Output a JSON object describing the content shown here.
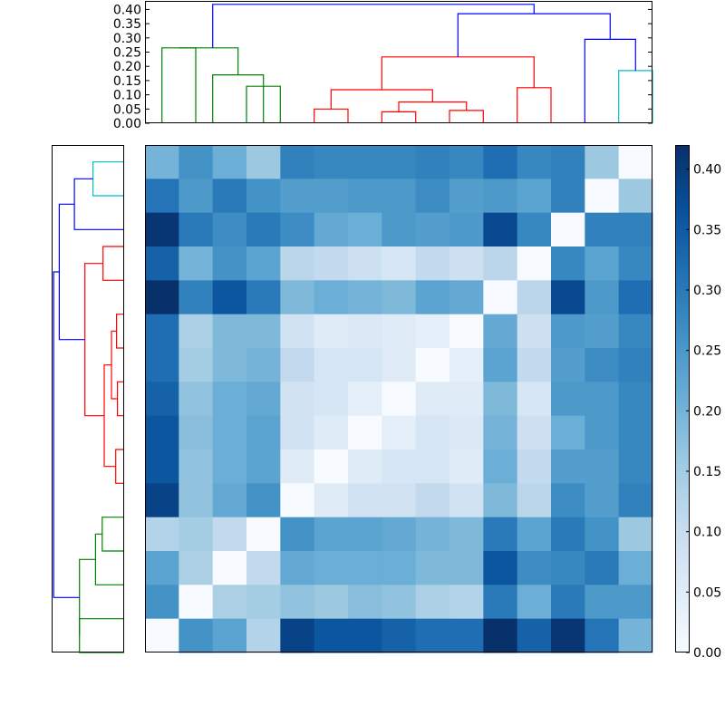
{
  "chart_data": [
    {
      "type": "dendrogram",
      "orientation": "top",
      "ylim": [
        0,
        0.43
      ],
      "yticks": [
        "0.00",
        "0.05",
        "0.10",
        "0.15",
        "0.20",
        "0.25",
        "0.30",
        "0.35",
        "0.40"
      ],
      "ytick_values": [
        0,
        0.05,
        0.1,
        0.15,
        0.2,
        0.25,
        0.3,
        0.35,
        0.4
      ],
      "leaf_count": 15,
      "links": [
        {
          "x": [
            0,
            0,
            1,
            1
          ],
          "y": [
            0,
            0.265,
            0.265,
            0
          ],
          "color": "#008000"
        },
        {
          "x": [
            1.5,
            1.5,
            3,
            3
          ],
          "y": [
            0,
            0.17,
            0.17,
            0
          ],
          "color": "#008000"
        },
        {
          "x": [
            2.5,
            2.5,
            3.5,
            3.5
          ],
          "y": [
            0,
            0.13,
            0.13,
            0
          ],
          "color": "#008000"
        },
        {
          "x": [
            0.5,
            0.5,
            2.25,
            2.25
          ],
          "y": [
            0.265,
            0.265,
            0.265,
            0.17
          ],
          "color": "#008000"
        },
        {
          "x": [
            4.5,
            4.5,
            5.5,
            5.5
          ],
          "y": [
            0,
            0.05,
            0.05,
            0
          ],
          "color": "#ff0000"
        },
        {
          "x": [
            6.5,
            6.5,
            7.5,
            7.5
          ],
          "y": [
            0,
            0.04,
            0.04,
            0
          ],
          "color": "#ff0000"
        },
        {
          "x": [
            8.5,
            8.5,
            9.5,
            9.5
          ],
          "y": [
            0,
            0.045,
            0.045,
            0
          ],
          "color": "#ff0000"
        },
        {
          "x": [
            7,
            7,
            9,
            9
          ],
          "y": [
            0.04,
            0.075,
            0.075,
            0.045
          ],
          "color": "#ff0000"
        },
        {
          "x": [
            5,
            5,
            8,
            8
          ],
          "y": [
            0.05,
            0.118,
            0.118,
            0.075
          ],
          "color": "#ff0000"
        },
        {
          "x": [
            10.5,
            10.5,
            11.5,
            11.5
          ],
          "y": [
            0,
            0.125,
            0.125,
            0
          ],
          "color": "#ff0000"
        },
        {
          "x": [
            6.5,
            6.5,
            11,
            11
          ],
          "y": [
            0.118,
            0.233,
            0.233,
            0.125
          ],
          "color": "#ff0000"
        },
        {
          "x": [
            13.5,
            13.5,
            14.5,
            14.5
          ],
          "y": [
            0,
            0.185,
            0.185,
            0
          ],
          "color": "#00bfbf"
        },
        {
          "x": [
            12.5,
            12.5,
            14,
            14
          ],
          "y": [
            0,
            0.295,
            0.295,
            0.185
          ],
          "color": "#0000ff"
        },
        {
          "x": [
            8.75,
            8.75,
            13.25,
            13.25
          ],
          "y": [
            0.233,
            0.385,
            0.385,
            0.295
          ],
          "color": "#0000ff"
        },
        {
          "x": [
            1.5,
            1.5,
            11,
            11
          ],
          "y": [
            0.265,
            0.418,
            0.418,
            0.385
          ],
          "color": "#0000ff"
        }
      ]
    },
    {
      "type": "dendrogram",
      "orientation": "left",
      "leaf_count": 15,
      "links": [
        {
          "x": [
            0,
            0,
            1,
            1
          ],
          "y": [
            0,
            0.185,
            0.185,
            0
          ],
          "color": "#00bfbf"
        },
        {
          "x": [
            0.5,
            0.5,
            2,
            2
          ],
          "y": [
            0.185,
            0.295,
            0.295,
            0
          ],
          "color": "#0000ff"
        },
        {
          "x": [
            2.5,
            2.5,
            3.5,
            3.5
          ],
          "y": [
            0,
            0.125,
            0.125,
            0
          ],
          "color": "#ff0000"
        },
        {
          "x": [
            4.5,
            4.5,
            5.5,
            5.5
          ],
          "y": [
            0,
            0.045,
            0.045,
            0
          ],
          "color": "#ff0000"
        },
        {
          "x": [
            6.5,
            6.5,
            7.5,
            7.5
          ],
          "y": [
            0,
            0.04,
            0.04,
            0
          ],
          "color": "#ff0000"
        },
        {
          "x": [
            5,
            5,
            7,
            7
          ],
          "y": [
            0.045,
            0.075,
            0.075,
            0.04
          ],
          "color": "#ff0000"
        },
        {
          "x": [
            8.5,
            8.5,
            9.5,
            9.5
          ],
          "y": [
            0,
            0.05,
            0.05,
            0
          ],
          "color": "#ff0000"
        },
        {
          "x": [
            6,
            6,
            9,
            9
          ],
          "y": [
            0.075,
            0.118,
            0.118,
            0.05
          ],
          "color": "#ff0000"
        },
        {
          "x": [
            3,
            3,
            7.5,
            7.5
          ],
          "y": [
            0.125,
            0.233,
            0.233,
            0.118
          ],
          "color": "#ff0000"
        },
        {
          "x": [
            1.25,
            1.25,
            5.25,
            5.25
          ],
          "y": [
            0.295,
            0.385,
            0.385,
            0.233
          ],
          "color": "#0000ff"
        },
        {
          "x": [
            10.5,
            10.5,
            11.5,
            11.5
          ],
          "y": [
            0,
            0.13,
            0.13,
            0
          ],
          "color": "#008000"
        },
        {
          "x": [
            11,
            11,
            12.5,
            12.5
          ],
          "y": [
            0.13,
            0.17,
            0.17,
            0
          ],
          "color": "#008000"
        },
        {
          "x": [
            13.5,
            13.5,
            14.5,
            14.5
          ],
          "y": [
            0,
            0.265,
            0.265,
            0
          ],
          "color": "#008000"
        },
        {
          "x": [
            11.75,
            11.75,
            14,
            14
          ],
          "y": [
            0.17,
            0.265,
            0.265,
            0.265
          ],
          "color": "#008000"
        },
        {
          "x": [
            3.25,
            3.25,
            12.875,
            12.875
          ],
          "y": [
            0.385,
            0.418,
            0.418,
            0.265
          ],
          "color": "#0000ff"
        }
      ]
    },
    {
      "type": "heatmap",
      "colormap": "Blues",
      "vmin": 0,
      "vmax": 0.42,
      "matrix": [
        [
          0.2,
          0.26,
          0.21,
          0.16,
          0.29,
          0.28,
          0.28,
          0.28,
          0.29,
          0.28,
          0.32,
          0.28,
          0.29,
          0.16,
          0.0
        ],
        [
          0.31,
          0.25,
          0.3,
          0.26,
          0.24,
          0.24,
          0.25,
          0.25,
          0.27,
          0.24,
          0.25,
          0.23,
          0.29,
          0.0,
          0.16
        ],
        [
          0.41,
          0.3,
          0.27,
          0.3,
          0.27,
          0.22,
          0.21,
          0.25,
          0.24,
          0.25,
          0.38,
          0.28,
          0.0,
          0.29,
          0.29
        ],
        [
          0.34,
          0.2,
          0.26,
          0.23,
          0.12,
          0.11,
          0.09,
          0.07,
          0.11,
          0.09,
          0.12,
          0.0,
          0.28,
          0.23,
          0.28
        ],
        [
          0.42,
          0.29,
          0.36,
          0.3,
          0.19,
          0.21,
          0.2,
          0.19,
          0.23,
          0.22,
          0.0,
          0.12,
          0.38,
          0.25,
          0.32
        ],
        [
          0.32,
          0.14,
          0.19,
          0.19,
          0.08,
          0.05,
          0.06,
          0.05,
          0.04,
          0.0,
          0.22,
          0.09,
          0.25,
          0.24,
          0.28
        ],
        [
          0.32,
          0.15,
          0.19,
          0.2,
          0.11,
          0.07,
          0.07,
          0.05,
          0.0,
          0.04,
          0.23,
          0.11,
          0.24,
          0.27,
          0.29
        ],
        [
          0.34,
          0.17,
          0.21,
          0.22,
          0.08,
          0.07,
          0.04,
          0.0,
          0.05,
          0.05,
          0.19,
          0.07,
          0.25,
          0.25,
          0.28
        ],
        [
          0.36,
          0.18,
          0.21,
          0.23,
          0.08,
          0.05,
          0.0,
          0.04,
          0.07,
          0.06,
          0.2,
          0.09,
          0.21,
          0.25,
          0.28
        ],
        [
          0.36,
          0.17,
          0.21,
          0.23,
          0.05,
          0.0,
          0.05,
          0.07,
          0.07,
          0.05,
          0.21,
          0.11,
          0.24,
          0.24,
          0.28
        ],
        [
          0.39,
          0.17,
          0.22,
          0.26,
          0.0,
          0.05,
          0.08,
          0.08,
          0.11,
          0.08,
          0.19,
          0.12,
          0.27,
          0.24,
          0.29
        ],
        [
          0.13,
          0.15,
          0.11,
          0.0,
          0.26,
          0.23,
          0.23,
          0.22,
          0.2,
          0.19,
          0.3,
          0.23,
          0.3,
          0.26,
          0.16
        ],
        [
          0.23,
          0.14,
          0.0,
          0.11,
          0.22,
          0.21,
          0.21,
          0.21,
          0.19,
          0.19,
          0.36,
          0.27,
          0.28,
          0.3,
          0.21
        ],
        [
          0.26,
          0.0,
          0.14,
          0.15,
          0.17,
          0.16,
          0.18,
          0.17,
          0.14,
          0.13,
          0.3,
          0.21,
          0.3,
          0.25,
          0.25
        ],
        [
          0.0,
          0.26,
          0.23,
          0.13,
          0.39,
          0.36,
          0.36,
          0.34,
          0.32,
          0.32,
          0.42,
          0.34,
          0.41,
          0.31,
          0.2
        ]
      ]
    },
    {
      "type": "colorbar",
      "colormap": "Blues",
      "ylim": [
        0,
        0.42
      ],
      "ticks": [
        "0.00",
        "0.05",
        "0.10",
        "0.15",
        "0.20",
        "0.25",
        "0.30",
        "0.35",
        "0.40"
      ],
      "tick_values": [
        0,
        0.05,
        0.1,
        0.15,
        0.2,
        0.25,
        0.3,
        0.35,
        0.4
      ]
    }
  ]
}
